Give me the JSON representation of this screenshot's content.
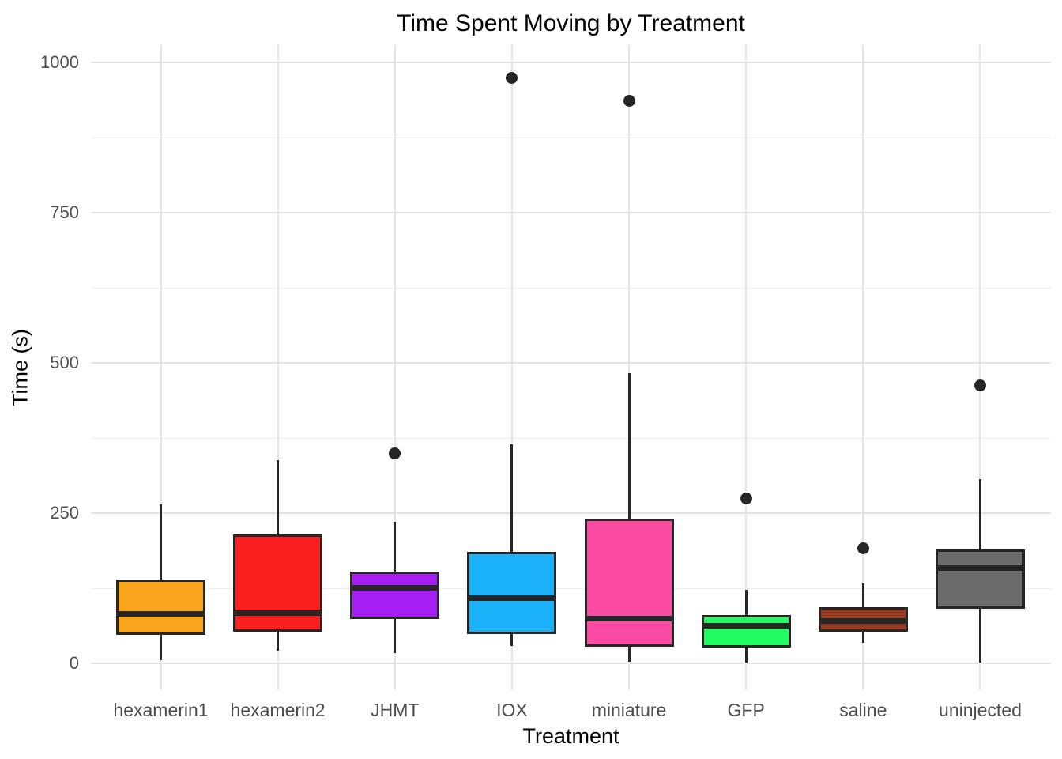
{
  "chart_data": {
    "type": "boxplot",
    "title": "Time Spent Moving by Treatment",
    "xlabel": "Treatment",
    "ylabel": "Time (s)",
    "ylim": [
      -45,
      1030
    ],
    "yticks": [
      0,
      250,
      500,
      750,
      1000
    ],
    "y_minor_gridlines": [
      125,
      375,
      625,
      875
    ],
    "grid": {
      "horizontal_major": true,
      "horizontal_minor": true,
      "vertical_at_categories": true
    },
    "legend": "none",
    "categories": [
      "hexamerin1",
      "hexamerin2",
      "JHMT",
      "IOX",
      "miniature",
      "GFP",
      "saline",
      "uninjected"
    ],
    "series": [
      {
        "category": "hexamerin1",
        "fill": "#F9A51B",
        "whisker_low": 5,
        "q1": 49,
        "median": 82,
        "q3": 138,
        "whisker_high": 264,
        "outliers": []
      },
      {
        "category": "hexamerin2",
        "fill": "#FB2020",
        "whisker_low": 21,
        "q1": 54,
        "median": 84,
        "q3": 213,
        "whisker_high": 338,
        "outliers": []
      },
      {
        "category": "JHMT",
        "fill": "#A51EF4",
        "whisker_low": 17,
        "q1": 76,
        "median": 126,
        "q3": 151,
        "whisker_high": 236,
        "outliers": [
          350
        ]
      },
      {
        "category": "IOX",
        "fill": "#1CB2FB",
        "whisker_low": 29,
        "q1": 51,
        "median": 109,
        "q3": 183,
        "whisker_high": 364,
        "outliers": [
          974
        ]
      },
      {
        "category": "miniature",
        "fill": "#FB4BA3",
        "whisker_low": 3,
        "q1": 30,
        "median": 74,
        "q3": 239,
        "whisker_high": 483,
        "outliers": [
          936
        ]
      },
      {
        "category": "GFP",
        "fill": "#22FB62",
        "whisker_low": 1,
        "q1": 28,
        "median": 62,
        "q3": 78,
        "whisker_high": 122,
        "outliers": [
          274
        ]
      },
      {
        "category": "saline",
        "fill": "#943B21",
        "whisker_low": 34,
        "q1": 55,
        "median": 70,
        "q3": 92,
        "whisker_high": 133,
        "outliers": [
          191
        ]
      },
      {
        "category": "uninjected",
        "fill": "#6B6B6B",
        "whisker_low": 1,
        "q1": 93,
        "median": 159,
        "q3": 187,
        "whisker_high": 307,
        "outliers": [
          463
        ]
      }
    ],
    "style": {
      "stroke": "#262626",
      "outlier_color": "#262626",
      "major_grid": "#E4E4E4",
      "minor_grid": "#EDEDED",
      "tick_label_color": "#4D4D4D",
      "title_color": "#000000",
      "background": "#FFFFFF"
    }
  }
}
